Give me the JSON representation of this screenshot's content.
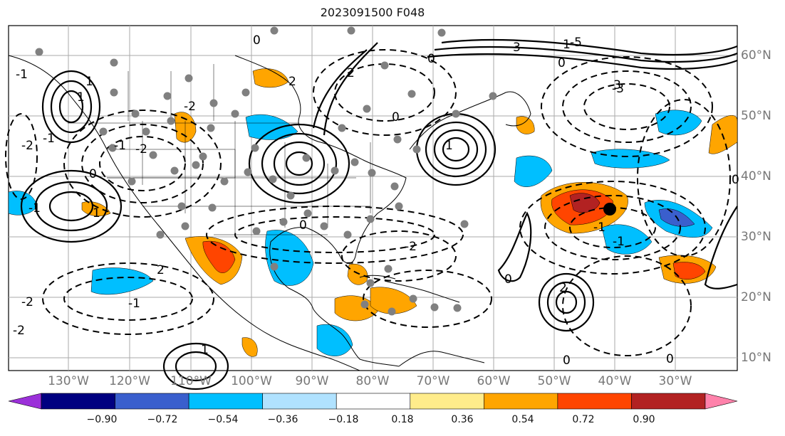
{
  "title": "2023091500 F048",
  "lat_labels": [
    "60°N",
    "50°N",
    "40°N",
    "30°N",
    "20°N",
    "10°N"
  ],
  "lon_labels": [
    "130°W",
    "120°W",
    "110°W",
    "100°W",
    "90°W",
    "80°W",
    "70°W",
    "60°W",
    "50°W",
    "40°W",
    "30°W"
  ],
  "colorbar": {
    "ticks": [
      "−0.90",
      "−0.72",
      "−0.54",
      "−0.36",
      "−0.18",
      "0.18",
      "0.36",
      "0.54",
      "0.72",
      "0.90"
    ],
    "colors": [
      "#9b30d9",
      "#000080",
      "#3a5fcd",
      "#00bfff",
      "#b0e2ff",
      "#ffffff",
      "#ffec8b",
      "#ffa500",
      "#ff4500",
      "#b22222",
      "#ff82ab"
    ]
  },
  "contour_labels": [
    "0",
    "-2",
    "-1",
    "1",
    "2",
    "3",
    "-5",
    "0",
    "-2",
    "-1",
    "1",
    "2",
    "-3",
    "0",
    "1",
    "-2",
    "2",
    "0",
    "-1",
    "1",
    "0",
    "-2",
    "-1",
    "0",
    "0",
    "-2",
    "1",
    "-1",
    "2",
    "0",
    "-1",
    "0",
    "-3",
    "1",
    "-2",
    "-1",
    "0"
  ],
  "colors": {
    "ocean": "#ffffff",
    "contour": "#000000",
    "grid": "#aaaaaa",
    "stations": "#808080",
    "marker": "#000000"
  }
}
